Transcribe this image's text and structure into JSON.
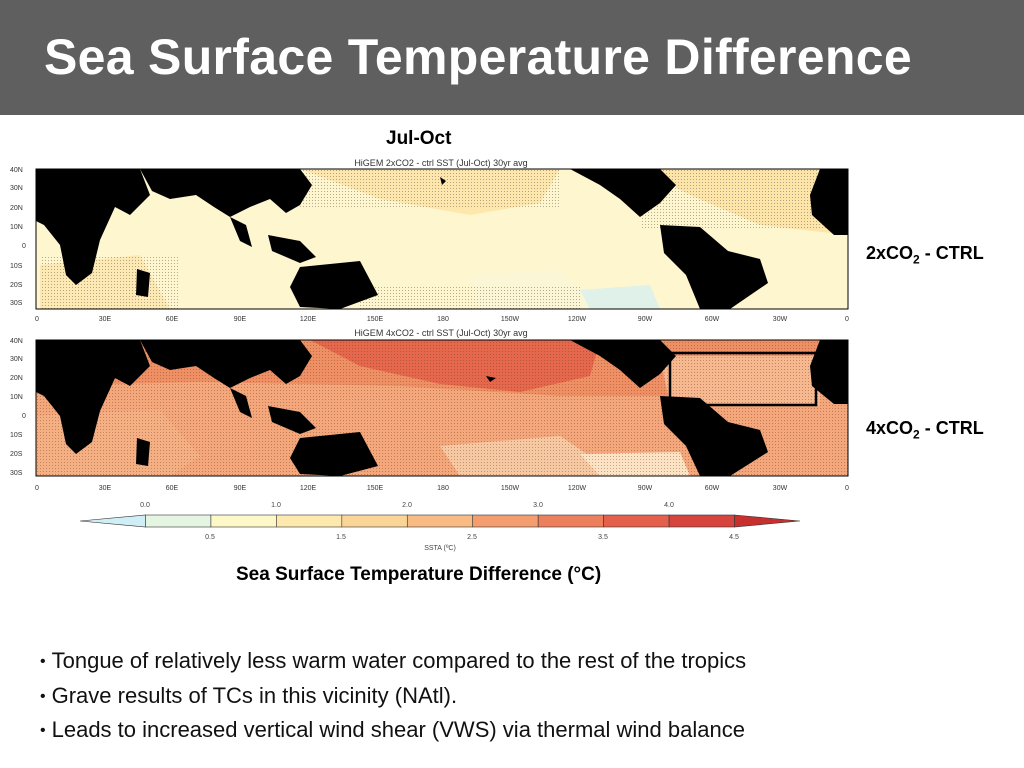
{
  "slide": {
    "title": "Sea Surface Temperature Difference",
    "season": "Jul-Oct",
    "caption": "Sea Surface Temperature Difference (°C)"
  },
  "panels": [
    {
      "plot_title": "HiGEM 2xCO2 - ctrl SST (Jul-Oct) 30yr avg",
      "label_main": "2xCO",
      "label_sub": "2",
      "label_rest": " - CTRL"
    },
    {
      "plot_title": "HiGEM 4xCO2 - ctrl SST (Jul-Oct) 30yr avg",
      "label_main": "4xCO",
      "label_sub": "2",
      "label_rest": " - CTRL"
    }
  ],
  "map_axes": {
    "lat_ticks": [
      "40N",
      "30N",
      "20N",
      "10N",
      "0",
      "10S",
      "20S",
      "30S"
    ],
    "lon_ticks": [
      "0",
      "30E",
      "60E",
      "90E",
      "120E",
      "150E",
      "180",
      "150W",
      "120W",
      "90W",
      "60W",
      "30W",
      "0"
    ]
  },
  "colorbar": {
    "top_labels": [
      "0.0",
      "1.0",
      "2.0",
      "3.0",
      "4.0"
    ],
    "bottom_labels": [
      "0.5",
      "1.5",
      "2.5",
      "3.5",
      "4.5"
    ],
    "title": "SSTA (ºC)",
    "colors": [
      "#cfeef5",
      "#e4f6e2",
      "#fdf8c8",
      "#fde9ad",
      "#fbd597",
      "#f8bb84",
      "#f49e6f",
      "#ee7f5d",
      "#e4604c",
      "#d6443d",
      "#c8302e"
    ]
  },
  "bullets": [
    "Tongue of relatively less warm water compared to the rest of the tropics",
    "Grave results of TCs in this vicinity (NAtl).",
    "Leads to increased vertical wind shear (VWS) via thermal wind balance"
  ]
}
